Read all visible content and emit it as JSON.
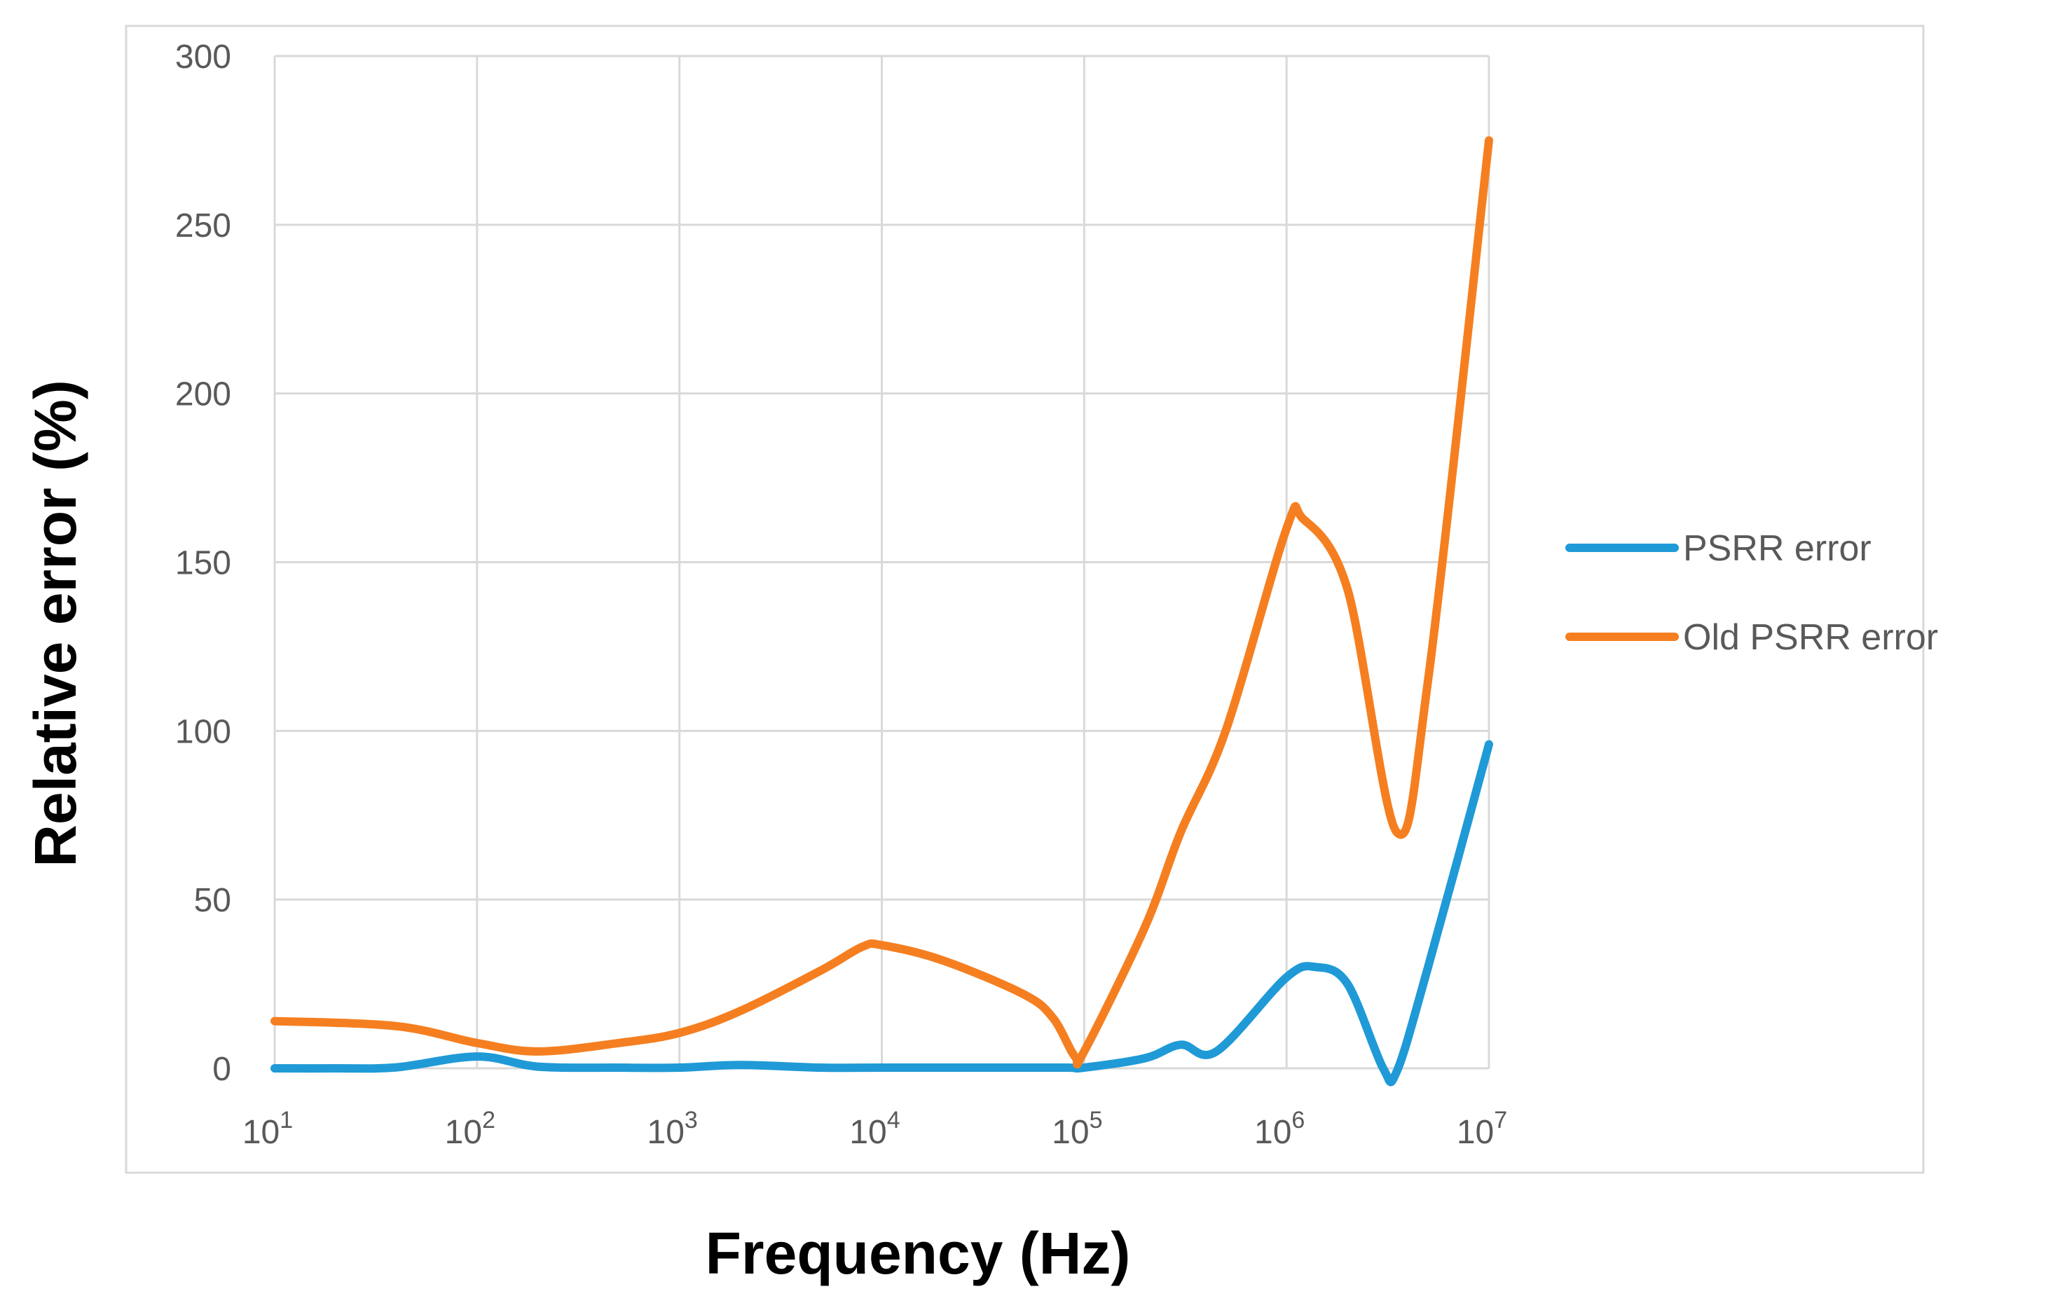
{
  "chart_data": {
    "type": "line",
    "title": "",
    "xlabel": "Frequency (Hz)",
    "ylabel": "Relative error (%)",
    "x_scale": "log",
    "xlim": [
      10,
      10000000
    ],
    "ylim": [
      0,
      300
    ],
    "grid": true,
    "legend_position": "right",
    "x_ticks": [
      {
        "value": 10,
        "base": "10",
        "exp": "1"
      },
      {
        "value": 100,
        "base": "10",
        "exp": "2"
      },
      {
        "value": 1000,
        "base": "10",
        "exp": "3"
      },
      {
        "value": 10000,
        "base": "10",
        "exp": "4"
      },
      {
        "value": 100000,
        "base": "10",
        "exp": "5"
      },
      {
        "value": 1000000,
        "base": "10",
        "exp": "6"
      },
      {
        "value": 10000000,
        "base": "10",
        "exp": "7"
      }
    ],
    "y_ticks": [
      "0",
      "50",
      "100",
      "150",
      "200",
      "250",
      "300"
    ],
    "series": [
      {
        "name": "PSRR error",
        "color": "#1f9ad6",
        "points": [
          [
            10,
            0
          ],
          [
            20,
            0
          ],
          [
            40,
            0.3
          ],
          [
            100,
            3.5
          ],
          [
            200,
            0.5
          ],
          [
            500,
            0.2
          ],
          [
            1000,
            0.2
          ],
          [
            2000,
            1
          ],
          [
            5000,
            0.2
          ],
          [
            10000,
            0.2
          ],
          [
            30000,
            0.2
          ],
          [
            80000,
            0.2
          ],
          [
            100000,
            0.2
          ],
          [
            200000,
            3
          ],
          [
            300000,
            7
          ],
          [
            450000,
            5
          ],
          [
            1000000,
            27
          ],
          [
            1400000,
            30
          ],
          [
            2000000,
            25
          ],
          [
            3000000,
            0
          ],
          [
            3500000,
            -1
          ],
          [
            5000000,
            30
          ],
          [
            10000000,
            96
          ]
        ]
      },
      {
        "name": "Old PSRR error",
        "color": "#f57f20",
        "points": [
          [
            10,
            14
          ],
          [
            40,
            12.5
          ],
          [
            100,
            7.5
          ],
          [
            200,
            5
          ],
          [
            500,
            7.5
          ],
          [
            1000,
            10.5
          ],
          [
            2000,
            17
          ],
          [
            5000,
            29
          ],
          [
            8000,
            36
          ],
          [
            10000,
            36.5
          ],
          [
            20000,
            32
          ],
          [
            50000,
            22
          ],
          [
            70000,
            15
          ],
          [
            90000,
            3.5
          ],
          [
            100000,
            5
          ],
          [
            200000,
            42
          ],
          [
            300000,
            70
          ],
          [
            500000,
            100
          ],
          [
            1000000,
            160
          ],
          [
            1200000,
            163
          ],
          [
            2000000,
            142
          ],
          [
            3500000,
            70
          ],
          [
            5000000,
            115
          ],
          [
            10000000,
            275
          ]
        ]
      }
    ]
  }
}
